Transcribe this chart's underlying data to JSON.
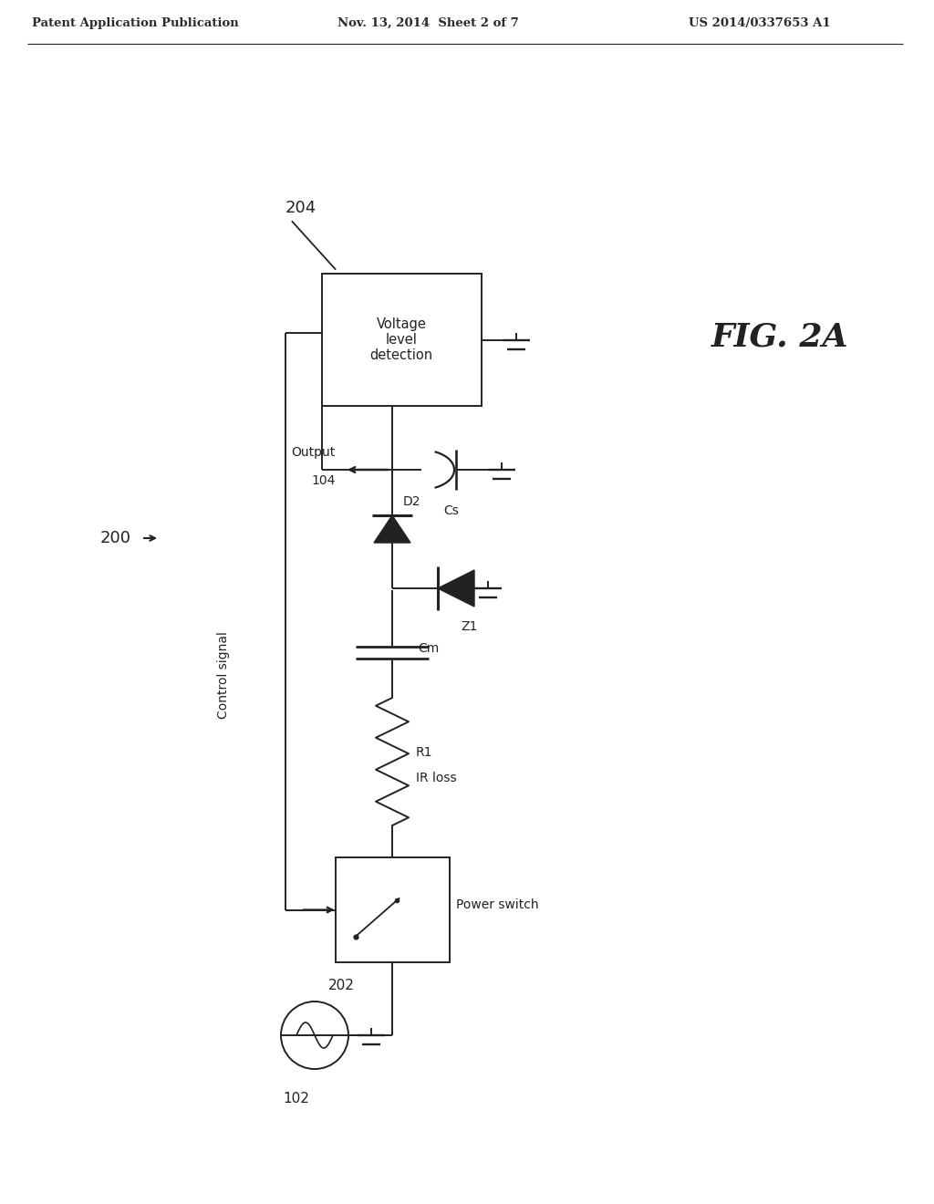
{
  "header_left": "Patent Application Publication",
  "header_mid": "Nov. 13, 2014  Sheet 2 of 7",
  "header_right": "US 2014/0337653 A1",
  "fig_label": "FIG. 2A",
  "bg_color": "#ffffff",
  "line_color": "#222222",
  "label_200": "200",
  "label_202": "202",
  "label_204": "204",
  "label_102": "102",
  "label_104": "104",
  "label_Cs": "Cs",
  "label_D2": "D2",
  "label_Z1": "Z1",
  "label_Cm": "Cm",
  "label_R1": "R1",
  "label_IR": "IR loss",
  "label_output": "Output",
  "label_control": "Control signal",
  "label_voltage": "Voltage\nlevel\ndetection",
  "label_power": "Power switch"
}
